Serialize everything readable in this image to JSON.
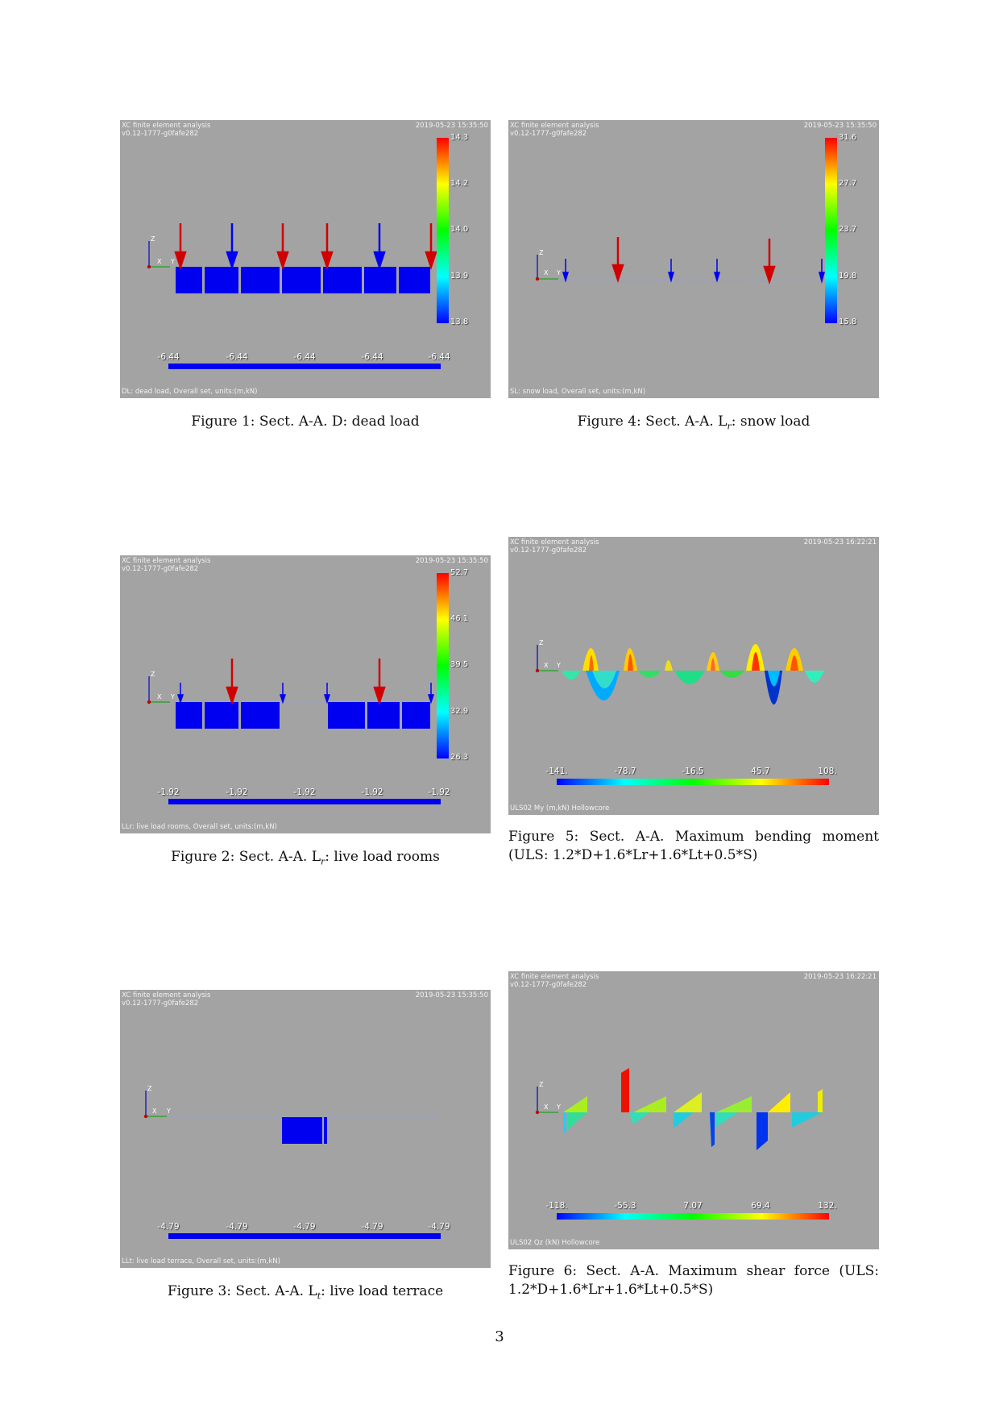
{
  "page_number": "3",
  "figures": [
    {
      "id": "fig1",
      "app_title": "XC finite element analysis",
      "version": "v0.12-1777-g0fafe282",
      "timestamp": "2019-05-23 15:35:50",
      "footer": "DL: dead load, Overall set, units:(m,kN)",
      "scale_labels": [
        "14.3",
        "14.2",
        "14.0",
        "13.9",
        "13.8"
      ],
      "load_labels": [
        "-6.44",
        "-6.44",
        "-6.44",
        "-6.44",
        "-6.44"
      ],
      "caption_prefix": "Figure 1: Sect. A-A. D: dead load",
      "caption_sub": "",
      "caption_suffix": ""
    },
    {
      "id": "fig4",
      "app_title": "XC finite element analysis",
      "version": "v0.12-1777-g0fafe282",
      "timestamp": "2019-05-23 15:35:50",
      "footer": "SL: snow load, Overall set, units:(m,kN)",
      "scale_labels": [
        "31.6",
        "27.7",
        "23.7",
        "19.8",
        "15.8"
      ],
      "caption_prefix": "Figure 4: Sect. A-A. L",
      "caption_sub": "r",
      "caption_suffix": ": snow load"
    },
    {
      "id": "fig2",
      "app_title": "XC finite element analysis",
      "version": "v0.12-1777-g0fafe282",
      "timestamp": "2019-05-23 15:35:50",
      "footer": "LLr: live load rooms, Overall set, units:(m,kN)",
      "scale_labels": [
        "52.7",
        "46.1",
        "39.5",
        "32.9",
        "26.3"
      ],
      "load_labels": [
        "-1.92",
        "-1.92",
        "-1.92",
        "-1.92",
        "-1.92"
      ],
      "caption_prefix": "Figure 2: Sect. A-A. L",
      "caption_sub": "r",
      "caption_suffix": ": live load rooms"
    },
    {
      "id": "fig5",
      "app_title": "XC finite element analysis",
      "version": "v0.12-1777-g0fafe282",
      "timestamp": "2019-05-23 16:22:21",
      "footer": "ULS02 My (m,kN) Hollowcore",
      "scale_labels": [
        "-141.",
        "-78.7",
        "-16.5",
        "45.7",
        "108."
      ],
      "caption_text": "Figure 5: Sect. A-A. Maximum bending moment (ULS: 1.2*D+1.6*Lr+1.6*Lt+0.5*S)"
    },
    {
      "id": "fig3",
      "app_title": "XC finite element analysis",
      "version": "v0.12-1777-g0fafe282",
      "timestamp": "2019-05-23 15:35:50",
      "footer": "LLt: live load terrace, Overall set, units:(m,kN)",
      "load_labels": [
        "-4.79",
        "-4.79",
        "-4.79",
        "-4.79",
        "-4.79"
      ],
      "caption_prefix": "Figure 3: Sect. A-A. L",
      "caption_sub": "t",
      "caption_suffix": ": live load terrace"
    },
    {
      "id": "fig6",
      "app_title": "XC finite element analysis",
      "version": "v0.12-1777-g0fafe282",
      "timestamp": "2019-05-23 16:22:21",
      "footer": "ULS02 Qz (kN) Hollowcore",
      "scale_labels": [
        "-118.",
        "-55.3",
        "7.07",
        "69.4",
        "132."
      ],
      "caption_text": "Figure 6: Sect. A-A. Maximum shear force (ULS: 1.2*D+1.6*Lr+1.6*Lt+0.5*S)"
    }
  ],
  "colors": {
    "panel_bg": "#a3a3a3",
    "load_blue": "#0000f0",
    "load_red": "#d10000"
  }
}
